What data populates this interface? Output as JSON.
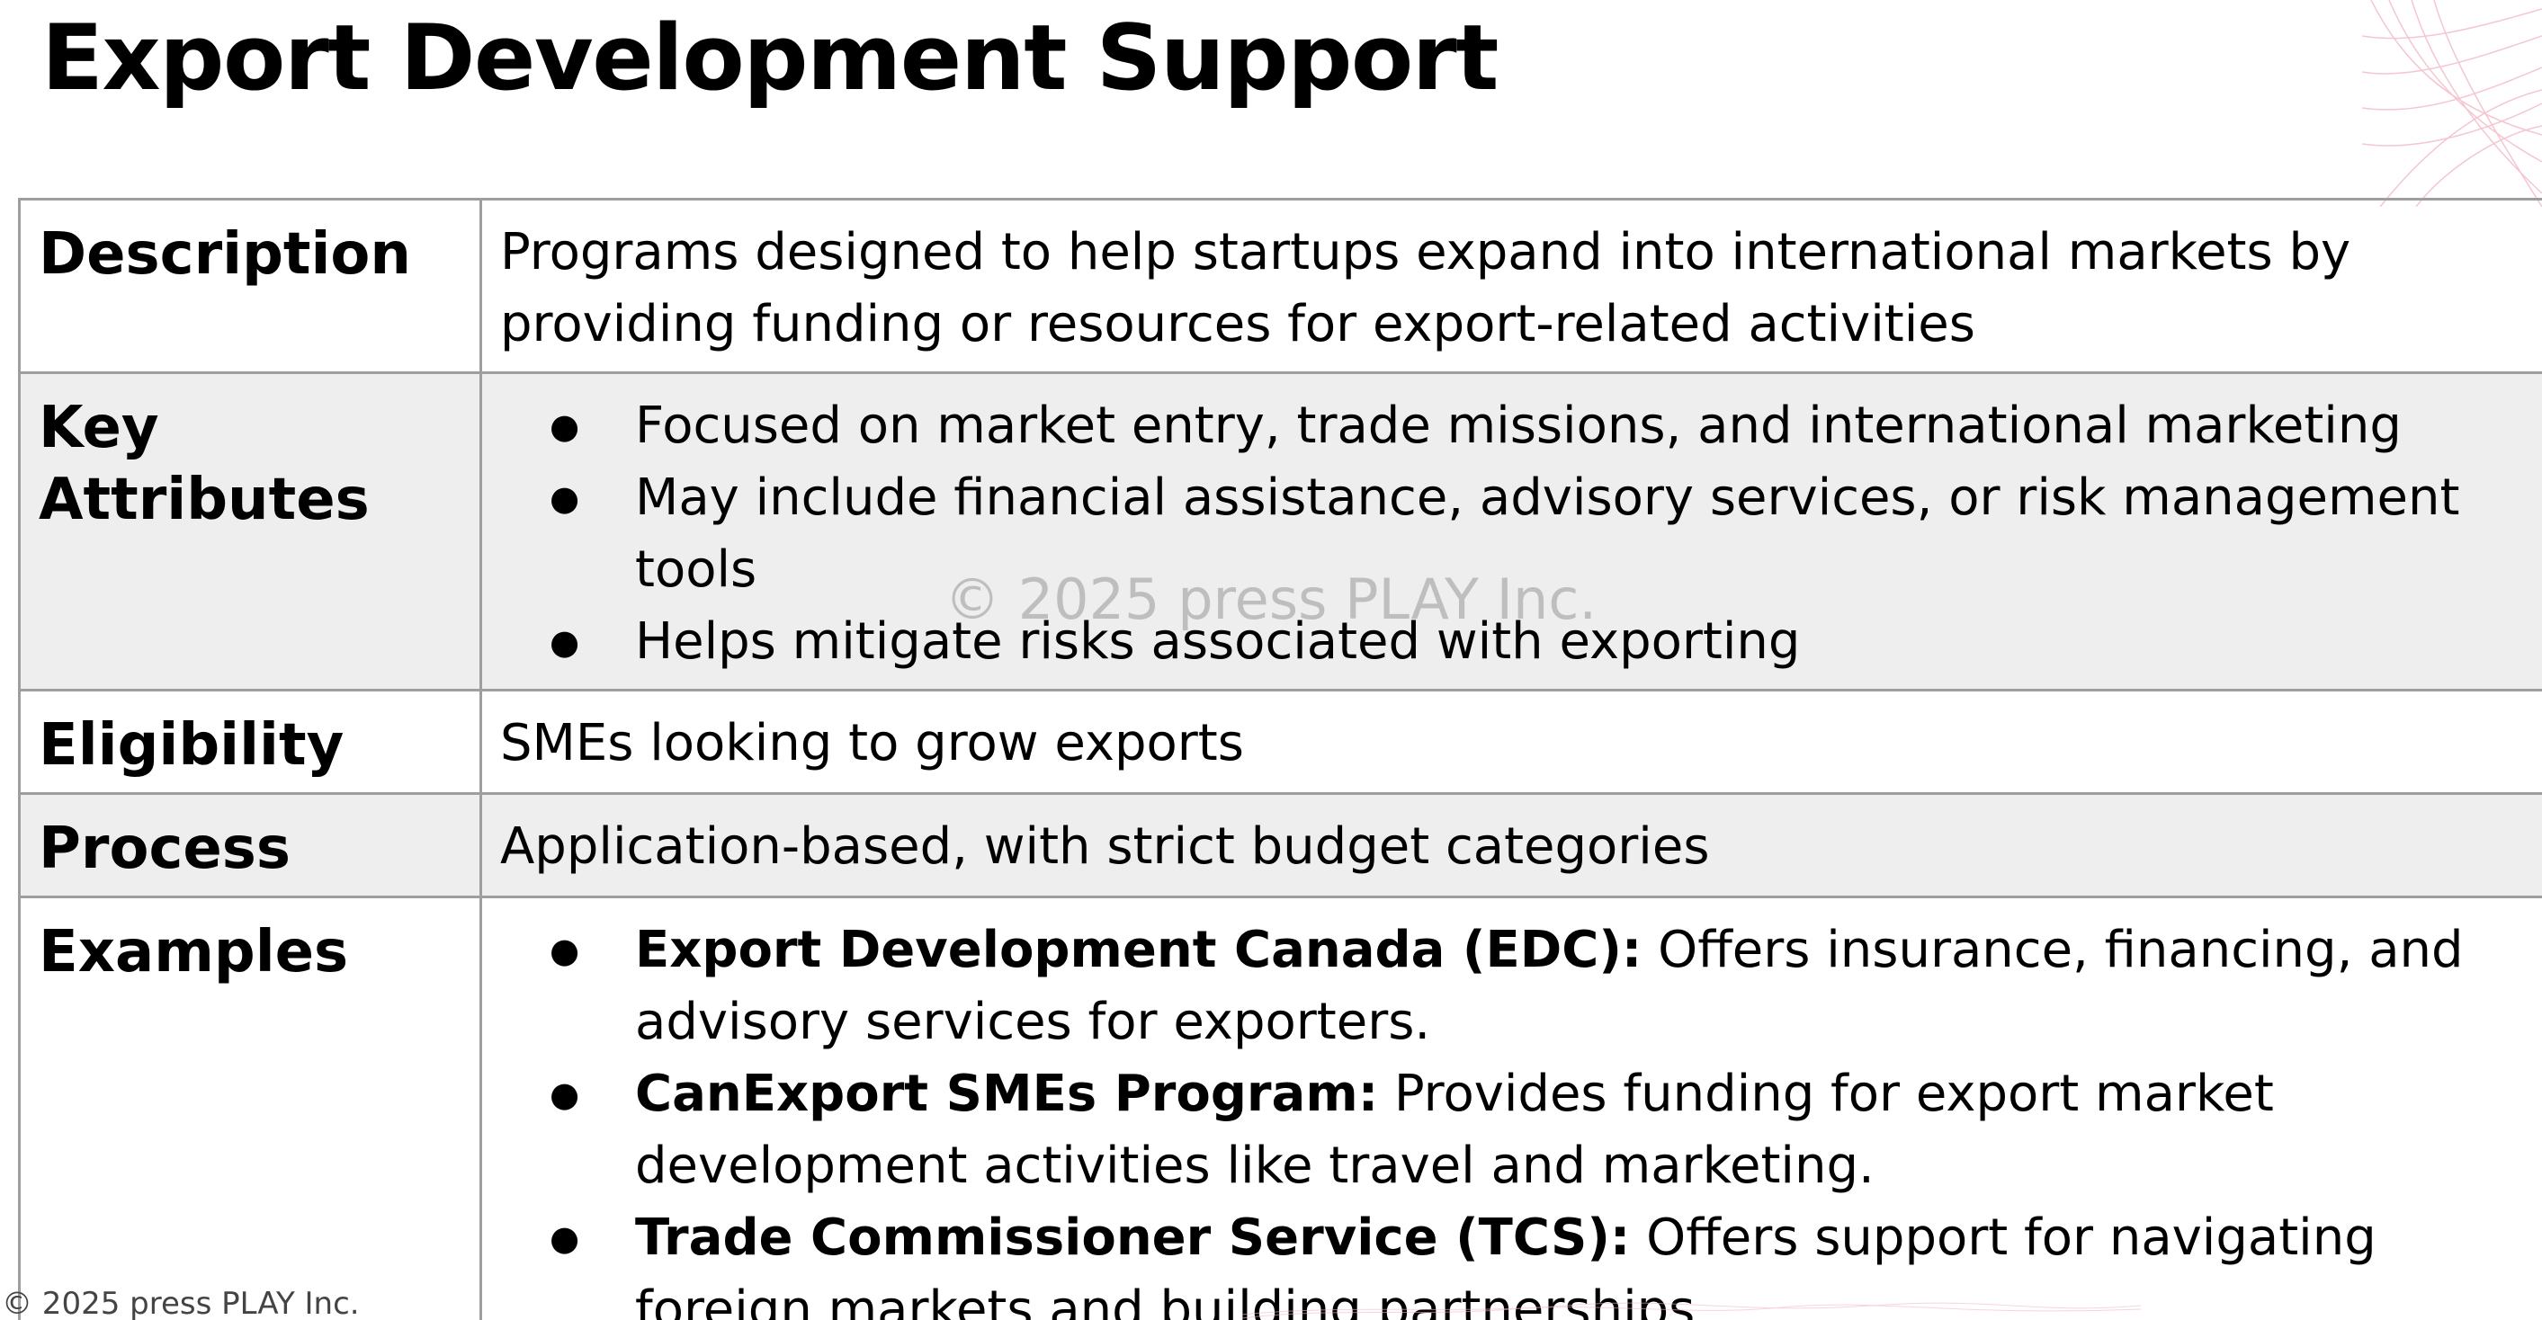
{
  "slide": {
    "title": "Export Development Support",
    "watermark": "© 2025 press PLAY Inc.",
    "footer": "© 2025 press PLAY Inc."
  },
  "table": {
    "description": {
      "label": "Description",
      "text": "Programs designed to help startups expand into international markets by providing funding or resources for export-related activities"
    },
    "key_attributes": {
      "label_line1": "Key",
      "label_line2": "Attributes",
      "items": [
        "Focused on market entry, trade missions, and international marketing",
        "May include financial assistance, advisory services, or risk management tools",
        "Helps mitigate risks associated with exporting"
      ]
    },
    "eligibility": {
      "label": "Eligibility",
      "text": "SMEs looking to grow exports"
    },
    "process": {
      "label": "Process",
      "text": "Application-based, with strict budget categories"
    },
    "examples": {
      "label": "Examples",
      "items": [
        {
          "name": "Export Development Canada (EDC):",
          "text": " Offers insurance, financing, and advisory services for exporters."
        },
        {
          "name": "CanExport SMEs Program:",
          "text": " Provides funding for export market development activities like travel and marketing."
        },
        {
          "name": "Trade Commissioner Service (TCS):",
          "text": " Offers support for navigating foreign markets and building partnerships."
        }
      ]
    }
  },
  "colors": {
    "shaded_row": "#eeeeee",
    "border": "#9e9e9e",
    "decoration": "#f2b8c6"
  }
}
